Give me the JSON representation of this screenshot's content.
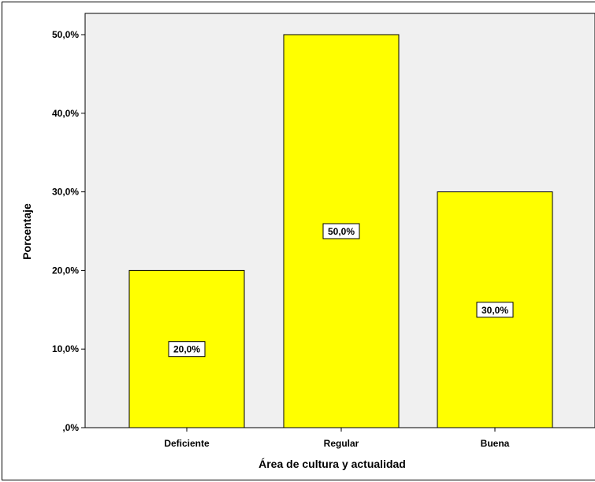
{
  "chart_data": {
    "type": "bar",
    "categories": [
      "Deficiente",
      "Regular",
      "Buena"
    ],
    "values": [
      20.0,
      50.0,
      30.0
    ],
    "data_labels": [
      "20,0%",
      "50,0%",
      "30,0%"
    ],
    "title": "",
    "xlabel": "Área de cultura y actualidad",
    "ylabel": "Porcentaje",
    "ylim": [
      0,
      50
    ],
    "yticks": [
      0,
      10,
      20,
      30,
      40,
      50
    ],
    "ytick_labels": [
      ",0%",
      "10,0%",
      "20,0%",
      "30,0%",
      "40,0%",
      "50,0%"
    ],
    "grid": false,
    "legend": "none",
    "colors": {
      "bar": "#FFFF00",
      "plot_background": "#F0F0F0",
      "outline": "#000000"
    }
  }
}
